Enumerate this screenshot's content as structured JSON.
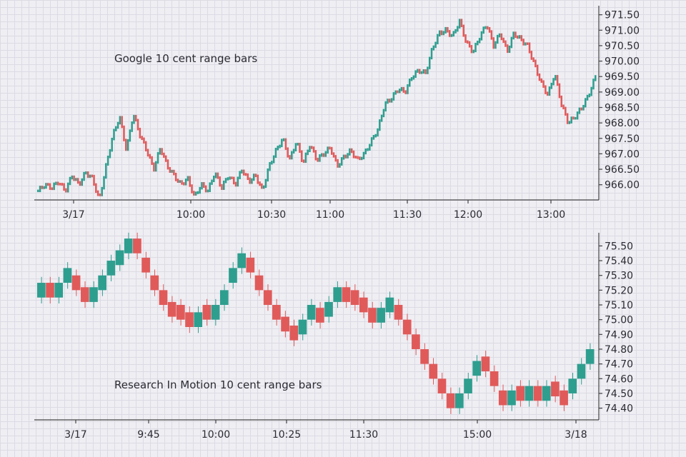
{
  "chart_data": [
    {
      "type": "range-bar",
      "title": "Google 10 cent range bars",
      "ylim": [
        965.6,
        971.7
      ],
      "yticks": [
        "971.50",
        "971.00",
        "970.50",
        "970.00",
        "969.50",
        "969.00",
        "968.50",
        "968.00",
        "967.50",
        "967.00",
        "966.50",
        "966.00"
      ],
      "xticks": [
        "3/17",
        "10:00",
        "10:30",
        "11:00",
        "11:30",
        "12:00",
        "13:00"
      ],
      "grid": true,
      "colors": {
        "up": "#2e9e8f",
        "down": "#e05a5a"
      },
      "series": [
        {
          "values": [
            965.8,
            966.0,
            965.9,
            966.1,
            965.8,
            966.3,
            966.0,
            966.4,
            966.2,
            965.5,
            966.6,
            967.6,
            968.2,
            967.1,
            968.3,
            967.6,
            967.1,
            966.5,
            967.2,
            966.6,
            966.3,
            966.0,
            966.2,
            965.6,
            966.0,
            965.8,
            966.4,
            965.9,
            966.3,
            966.0,
            966.5,
            966.1,
            966.3,
            965.8,
            966.6,
            967.1,
            967.5,
            966.8,
            967.4,
            966.7,
            967.3,
            966.8,
            967.0,
            967.2,
            966.6,
            966.9,
            967.1,
            966.8,
            967.0,
            967.4,
            967.8,
            968.6,
            968.8,
            969.1,
            969.0,
            969.5,
            969.7,
            969.6,
            970.4,
            970.9,
            971.0,
            970.8,
            971.3,
            970.6,
            970.3,
            970.8,
            971.2,
            970.5,
            970.9,
            970.3,
            970.9,
            970.7,
            970.5,
            969.9,
            969.3,
            968.9,
            969.6,
            968.6,
            968.0,
            968.2,
            968.5,
            968.9,
            969.5
          ],
          "labels": [
            "966.00"
          ]
        }
      ]
    },
    {
      "type": "range-bar",
      "title": "Research In Motion 10 cent range bars",
      "ylim": [
        74.34,
        75.56
      ],
      "yticks": [
        "75.50",
        "75.40",
        "75.30",
        "75.20",
        "75.10",
        "75.00",
        "74.90",
        "74.80",
        "74.70",
        "74.60",
        "74.50",
        "74.40"
      ],
      "xticks": [
        "3/17",
        "9:45",
        "10:00",
        "10:25",
        "11:30",
        "15:00",
        "3/18"
      ],
      "grid": true,
      "colors": {
        "up": "#2e9e8f",
        "down": "#e05a5a"
      },
      "series": [
        {
          "values": [
            75.2,
            75.15,
            75.25,
            75.28,
            75.2,
            75.12,
            75.18,
            75.3,
            75.37,
            75.45,
            75.55,
            75.42,
            75.3,
            75.2,
            75.1,
            75.02,
            75.0,
            74.95,
            75.03,
            75.0,
            75.08,
            75.2,
            75.35,
            75.42,
            75.3,
            75.2,
            75.1,
            75.0,
            74.92,
            74.86,
            75.0,
            75.08,
            74.98,
            75.12,
            75.2,
            75.12,
            75.1,
            75.05,
            74.98,
            75.05,
            75.1,
            75.0,
            74.9,
            74.8,
            74.7,
            74.6,
            74.5,
            74.4,
            74.48,
            74.6,
            74.72,
            74.65,
            74.5,
            74.42,
            74.5,
            74.45,
            74.55,
            74.45,
            74.52,
            74.48,
            74.42,
            74.6,
            74.7,
            74.8
          ]
        }
      ]
    }
  ]
}
